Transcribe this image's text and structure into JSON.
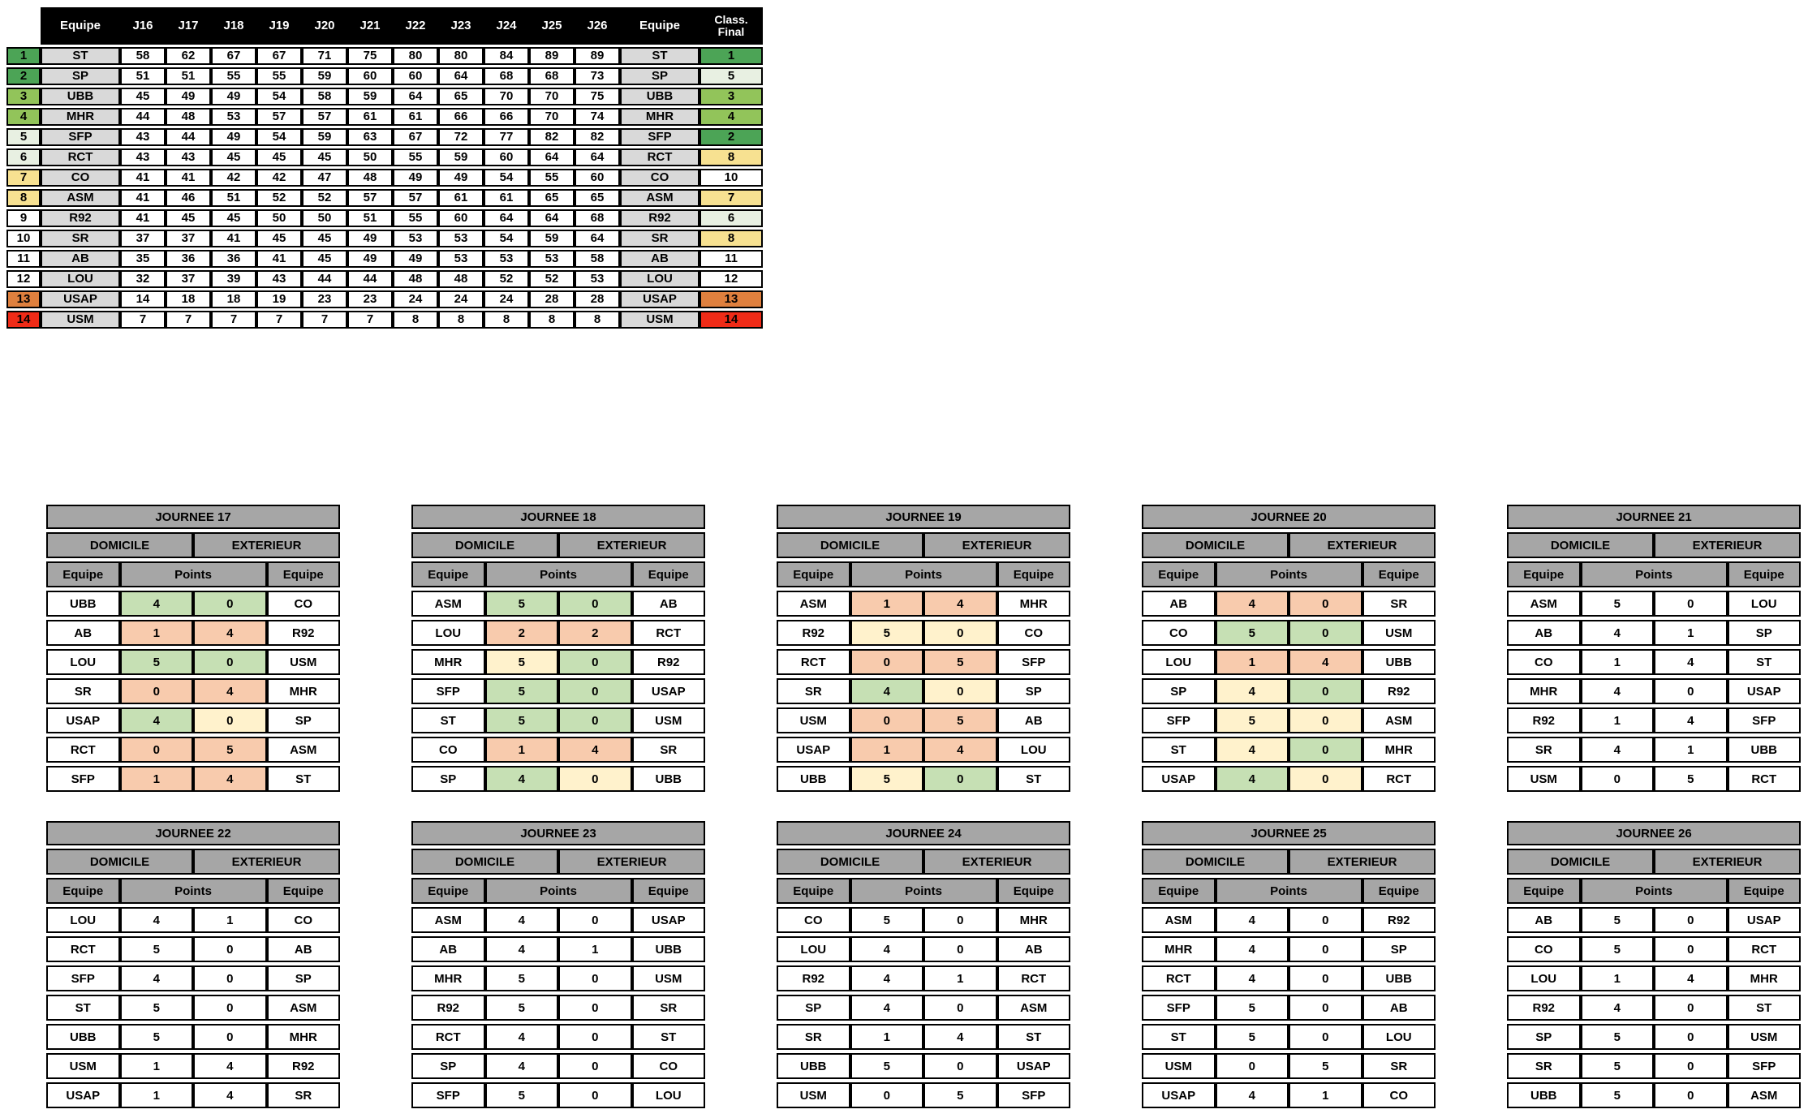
{
  "palette": {
    "green": "#4CA456",
    "lgreen": "#92C45A",
    "pgreen": "#E8F0E2",
    "yellow": "#F7E191",
    "orange": "#DF803E",
    "red": "#EF2B17",
    "white": "#FFFFFF",
    "m_g": "#C6E0B4",
    "m_o": "#F8CBAD",
    "m_y": "#FFF2CC",
    "header_black": "#000000",
    "header_gray": "#A6A6A6",
    "team_gray": "#D9D9D9"
  },
  "standings": {
    "header": {
      "equipe": "Equipe",
      "class_final": "Class. Final",
      "rounds": [
        "J16",
        "J17",
        "J18",
        "J19",
        "J20",
        "J21",
        "J22",
        "J23",
        "J24",
        "J25",
        "J26"
      ]
    },
    "rows": [
      {
        "rank": "1",
        "rank_color": "green",
        "team": "ST",
        "points": [
          "58",
          "62",
          "67",
          "67",
          "71",
          "75",
          "80",
          "80",
          "84",
          "89",
          "89"
        ],
        "final": "1",
        "final_color": "green"
      },
      {
        "rank": "2",
        "rank_color": "green",
        "team": "SP",
        "points": [
          "51",
          "51",
          "55",
          "55",
          "59",
          "60",
          "60",
          "64",
          "68",
          "68",
          "73"
        ],
        "final": "5",
        "final_color": "pgreen"
      },
      {
        "rank": "3",
        "rank_color": "lgreen",
        "team": "UBB",
        "points": [
          "45",
          "49",
          "49",
          "54",
          "58",
          "59",
          "64",
          "65",
          "70",
          "70",
          "75"
        ],
        "final": "3",
        "final_color": "lgreen"
      },
      {
        "rank": "4",
        "rank_color": "lgreen",
        "team": "MHR",
        "points": [
          "44",
          "48",
          "53",
          "57",
          "57",
          "61",
          "61",
          "66",
          "66",
          "70",
          "74"
        ],
        "final": "4",
        "final_color": "lgreen"
      },
      {
        "rank": "5",
        "rank_color": "pgreen",
        "team": "SFP",
        "points": [
          "43",
          "44",
          "49",
          "54",
          "59",
          "63",
          "67",
          "72",
          "77",
          "82",
          "82"
        ],
        "final": "2",
        "final_color": "green"
      },
      {
        "rank": "6",
        "rank_color": "pgreen",
        "team": "RCT",
        "points": [
          "43",
          "43",
          "45",
          "45",
          "45",
          "50",
          "55",
          "59",
          "60",
          "64",
          "64"
        ],
        "final": "8",
        "final_color": "yellow"
      },
      {
        "rank": "7",
        "rank_color": "yellow",
        "team": "CO",
        "points": [
          "41",
          "41",
          "42",
          "42",
          "47",
          "48",
          "49",
          "49",
          "54",
          "55",
          "60"
        ],
        "final": "10",
        "final_color": "white"
      },
      {
        "rank": "8",
        "rank_color": "yellow",
        "team": "ASM",
        "points": [
          "41",
          "46",
          "51",
          "52",
          "52",
          "57",
          "57",
          "61",
          "61",
          "65",
          "65"
        ],
        "final": "7",
        "final_color": "yellow"
      },
      {
        "rank": "9",
        "rank_color": "white",
        "team": "R92",
        "points": [
          "41",
          "45",
          "45",
          "50",
          "50",
          "51",
          "55",
          "60",
          "64",
          "64",
          "68"
        ],
        "final": "6",
        "final_color": "pgreen"
      },
      {
        "rank": "10",
        "rank_color": "white",
        "team": "SR",
        "points": [
          "37",
          "37",
          "41",
          "45",
          "45",
          "49",
          "53",
          "53",
          "54",
          "59",
          "64"
        ],
        "final": "8",
        "final_color": "yellow"
      },
      {
        "rank": "11",
        "rank_color": "white",
        "team": "AB",
        "points": [
          "35",
          "36",
          "36",
          "41",
          "45",
          "49",
          "49",
          "53",
          "53",
          "53",
          "58"
        ],
        "final": "11",
        "final_color": "white"
      },
      {
        "rank": "12",
        "rank_color": "white",
        "team": "LOU",
        "points": [
          "32",
          "37",
          "39",
          "43",
          "44",
          "44",
          "48",
          "48",
          "52",
          "52",
          "53"
        ],
        "final": "12",
        "final_color": "white"
      },
      {
        "rank": "13",
        "rank_color": "orange",
        "team": "USAP",
        "points": [
          "14",
          "18",
          "18",
          "19",
          "23",
          "23",
          "24",
          "24",
          "24",
          "28",
          "28"
        ],
        "final": "13",
        "final_color": "orange"
      },
      {
        "rank": "14",
        "rank_color": "red",
        "team": "USM",
        "points": [
          "7",
          "7",
          "7",
          "7",
          "7",
          "7",
          "8",
          "8",
          "8",
          "8",
          "8"
        ],
        "final": "14",
        "final_color": "red"
      }
    ]
  },
  "journee_labels": {
    "domicile": "DOMICILE",
    "exterieur": "EXTERIEUR",
    "equipe": "Equipe",
    "points": "Points"
  },
  "journees": [
    {
      "title": "JOURNEE 17",
      "matches": [
        [
          "UBB",
          "4",
          "0",
          "CO",
          "g",
          "g"
        ],
        [
          "AB",
          "1",
          "4",
          "R92",
          "o",
          "o"
        ],
        [
          "LOU",
          "5",
          "0",
          "USM",
          "g",
          "g"
        ],
        [
          "SR",
          "0",
          "4",
          "MHR",
          "o",
          "o"
        ],
        [
          "USAP",
          "4",
          "0",
          "SP",
          "g",
          "y"
        ],
        [
          "RCT",
          "0",
          "5",
          "ASM",
          "o",
          "o"
        ],
        [
          "SFP",
          "1",
          "4",
          "ST",
          "o",
          "o"
        ]
      ]
    },
    {
      "title": "JOURNEE 18",
      "matches": [
        [
          "ASM",
          "5",
          "0",
          "AB",
          "g",
          "g"
        ],
        [
          "LOU",
          "2",
          "2",
          "RCT",
          "o",
          "o"
        ],
        [
          "MHR",
          "5",
          "0",
          "R92",
          "y",
          "g"
        ],
        [
          "SFP",
          "5",
          "0",
          "USAP",
          "g",
          "g"
        ],
        [
          "ST",
          "5",
          "0",
          "USM",
          "g",
          "g"
        ],
        [
          "CO",
          "1",
          "4",
          "SR",
          "o",
          "o"
        ],
        [
          "SP",
          "4",
          "0",
          "UBB",
          "g",
          "y"
        ]
      ]
    },
    {
      "title": "JOURNEE 19",
      "matches": [
        [
          "ASM",
          "1",
          "4",
          "MHR",
          "o",
          "o"
        ],
        [
          "R92",
          "5",
          "0",
          "CO",
          "y",
          "y"
        ],
        [
          "RCT",
          "0",
          "5",
          "SFP",
          "o",
          "o"
        ],
        [
          "SR",
          "4",
          "0",
          "SP",
          "g",
          "y"
        ],
        [
          "USM",
          "0",
          "5",
          "AB",
          "o",
          "o"
        ],
        [
          "USAP",
          "1",
          "4",
          "LOU",
          "o",
          "o"
        ],
        [
          "UBB",
          "5",
          "0",
          "ST",
          "y",
          "g"
        ]
      ]
    },
    {
      "title": "JOURNEE 20",
      "matches": [
        [
          "AB",
          "4",
          "0",
          "SR",
          "o",
          "o"
        ],
        [
          "CO",
          "5",
          "0",
          "USM",
          "g",
          "g"
        ],
        [
          "LOU",
          "1",
          "4",
          "UBB",
          "o",
          "o"
        ],
        [
          "SP",
          "4",
          "0",
          "R92",
          "y",
          "g"
        ],
        [
          "SFP",
          "5",
          "0",
          "ASM",
          "y",
          "y"
        ],
        [
          "ST",
          "4",
          "0",
          "MHR",
          "y",
          "g"
        ],
        [
          "USAP",
          "4",
          "0",
          "RCT",
          "g",
          "y"
        ]
      ]
    },
    {
      "title": "JOURNEE 21",
      "matches": [
        [
          "ASM",
          "5",
          "0",
          "LOU"
        ],
        [
          "AB",
          "4",
          "1",
          "SP"
        ],
        [
          "CO",
          "1",
          "4",
          "ST"
        ],
        [
          "MHR",
          "4",
          "0",
          "USAP"
        ],
        [
          "R92",
          "1",
          "4",
          "SFP"
        ],
        [
          "SR",
          "4",
          "1",
          "UBB"
        ],
        [
          "USM",
          "0",
          "5",
          "RCT"
        ]
      ]
    },
    {
      "title": "JOURNEE 22",
      "matches": [
        [
          "LOU",
          "4",
          "1",
          "CO"
        ],
        [
          "RCT",
          "5",
          "0",
          "AB"
        ],
        [
          "SFP",
          "4",
          "0",
          "SP"
        ],
        [
          "ST",
          "5",
          "0",
          "ASM"
        ],
        [
          "UBB",
          "5",
          "0",
          "MHR"
        ],
        [
          "USM",
          "1",
          "4",
          "R92"
        ],
        [
          "USAP",
          "1",
          "4",
          "SR"
        ]
      ]
    },
    {
      "title": "JOURNEE 23",
      "matches": [
        [
          "ASM",
          "4",
          "0",
          "USAP"
        ],
        [
          "AB",
          "4",
          "1",
          "UBB"
        ],
        [
          "MHR",
          "5",
          "0",
          "USM"
        ],
        [
          "R92",
          "5",
          "0",
          "SR"
        ],
        [
          "RCT",
          "4",
          "0",
          "ST"
        ],
        [
          "SP",
          "4",
          "0",
          "CO"
        ],
        [
          "SFP",
          "5",
          "0",
          "LOU"
        ]
      ]
    },
    {
      "title": "JOURNEE 24",
      "matches": [
        [
          "CO",
          "5",
          "0",
          "MHR"
        ],
        [
          "LOU",
          "4",
          "0",
          "AB"
        ],
        [
          "R92",
          "4",
          "1",
          "RCT"
        ],
        [
          "SP",
          "4",
          "0",
          "ASM"
        ],
        [
          "SR",
          "1",
          "4",
          "ST"
        ],
        [
          "UBB",
          "5",
          "0",
          "USAP"
        ],
        [
          "USM",
          "0",
          "5",
          "SFP"
        ]
      ]
    },
    {
      "title": "JOURNEE 25",
      "matches": [
        [
          "ASM",
          "4",
          "0",
          "R92"
        ],
        [
          "MHR",
          "4",
          "0",
          "SP"
        ],
        [
          "RCT",
          "4",
          "0",
          "UBB"
        ],
        [
          "SFP",
          "5",
          "0",
          "AB"
        ],
        [
          "ST",
          "5",
          "0",
          "LOU"
        ],
        [
          "USM",
          "0",
          "5",
          "SR"
        ],
        [
          "USAP",
          "4",
          "1",
          "CO"
        ]
      ]
    },
    {
      "title": "JOURNEE 26",
      "matches": [
        [
          "AB",
          "5",
          "0",
          "USAP"
        ],
        [
          "CO",
          "5",
          "0",
          "RCT"
        ],
        [
          "LOU",
          "1",
          "4",
          "MHR"
        ],
        [
          "R92",
          "4",
          "0",
          "ST"
        ],
        [
          "SP",
          "5",
          "0",
          "USM"
        ],
        [
          "SR",
          "5",
          "0",
          "SFP"
        ],
        [
          "UBB",
          "5",
          "0",
          "ASM"
        ]
      ]
    }
  ]
}
